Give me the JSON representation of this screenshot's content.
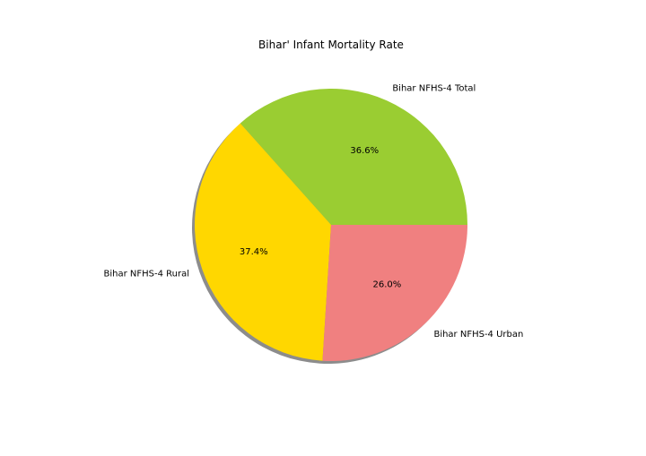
{
  "chart_data": {
    "type": "pie",
    "title": "Bihar' Infant Mortality Rate",
    "slices": [
      {
        "label": "Bihar NFHS-4 Total",
        "pct_label": "36.6%",
        "value": 36.6,
        "color": "#9acd32"
      },
      {
        "label": "Bihar NFHS-4 Rural",
        "pct_label": "37.4%",
        "value": 37.4,
        "color": "#ffd700"
      },
      {
        "label": "Bihar NFHS-4 Urban",
        "pct_label": "26.0%",
        "value": 26.0,
        "color": "#f08080"
      }
    ],
    "shadow": true,
    "start_angle_deg": 0,
    "direction": "counterclockwise"
  }
}
